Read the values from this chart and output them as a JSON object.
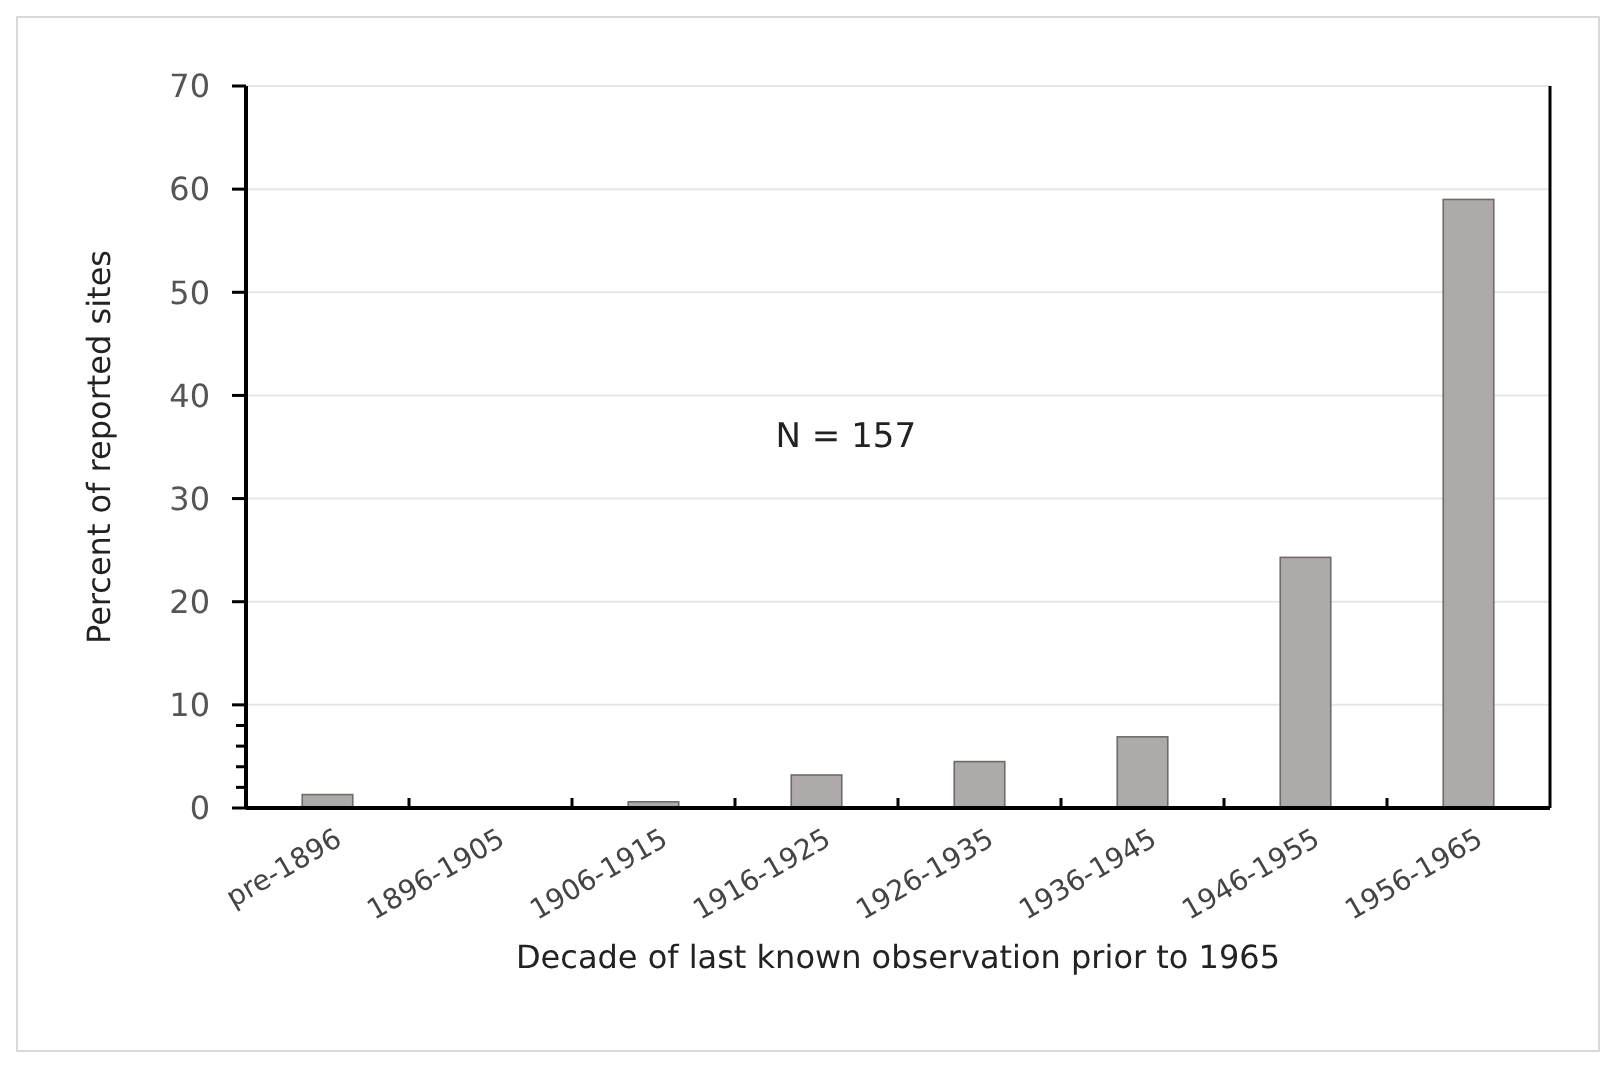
{
  "chart_data": {
    "type": "bar",
    "xlabel": "Decade of last known observation prior to 1965",
    "ylabel": "Percent of reported sites",
    "categories": [
      "pre-1896",
      "1896-1905",
      "1906-1915",
      "1916-1925",
      "1926-1935",
      "1936-1945",
      "1946-1955",
      "1956-1965"
    ],
    "values": [
      1.3,
      0,
      0.6,
      3.2,
      4.5,
      6.9,
      24.3,
      59.0
    ],
    "color": "#aeaaa9",
    "ylim": [
      0,
      70
    ],
    "yticks": [
      0,
      {
        "value": 2,
        "label": null
      },
      {
        "value": 4,
        "label": null
      },
      {
        "value": 6,
        "label": null
      },
      {
        "value": 8,
        "label": null
      },
      10,
      20,
      30,
      40,
      50,
      60,
      70
    ],
    "grid": "y",
    "annotations": [
      "N = 157"
    ]
  }
}
